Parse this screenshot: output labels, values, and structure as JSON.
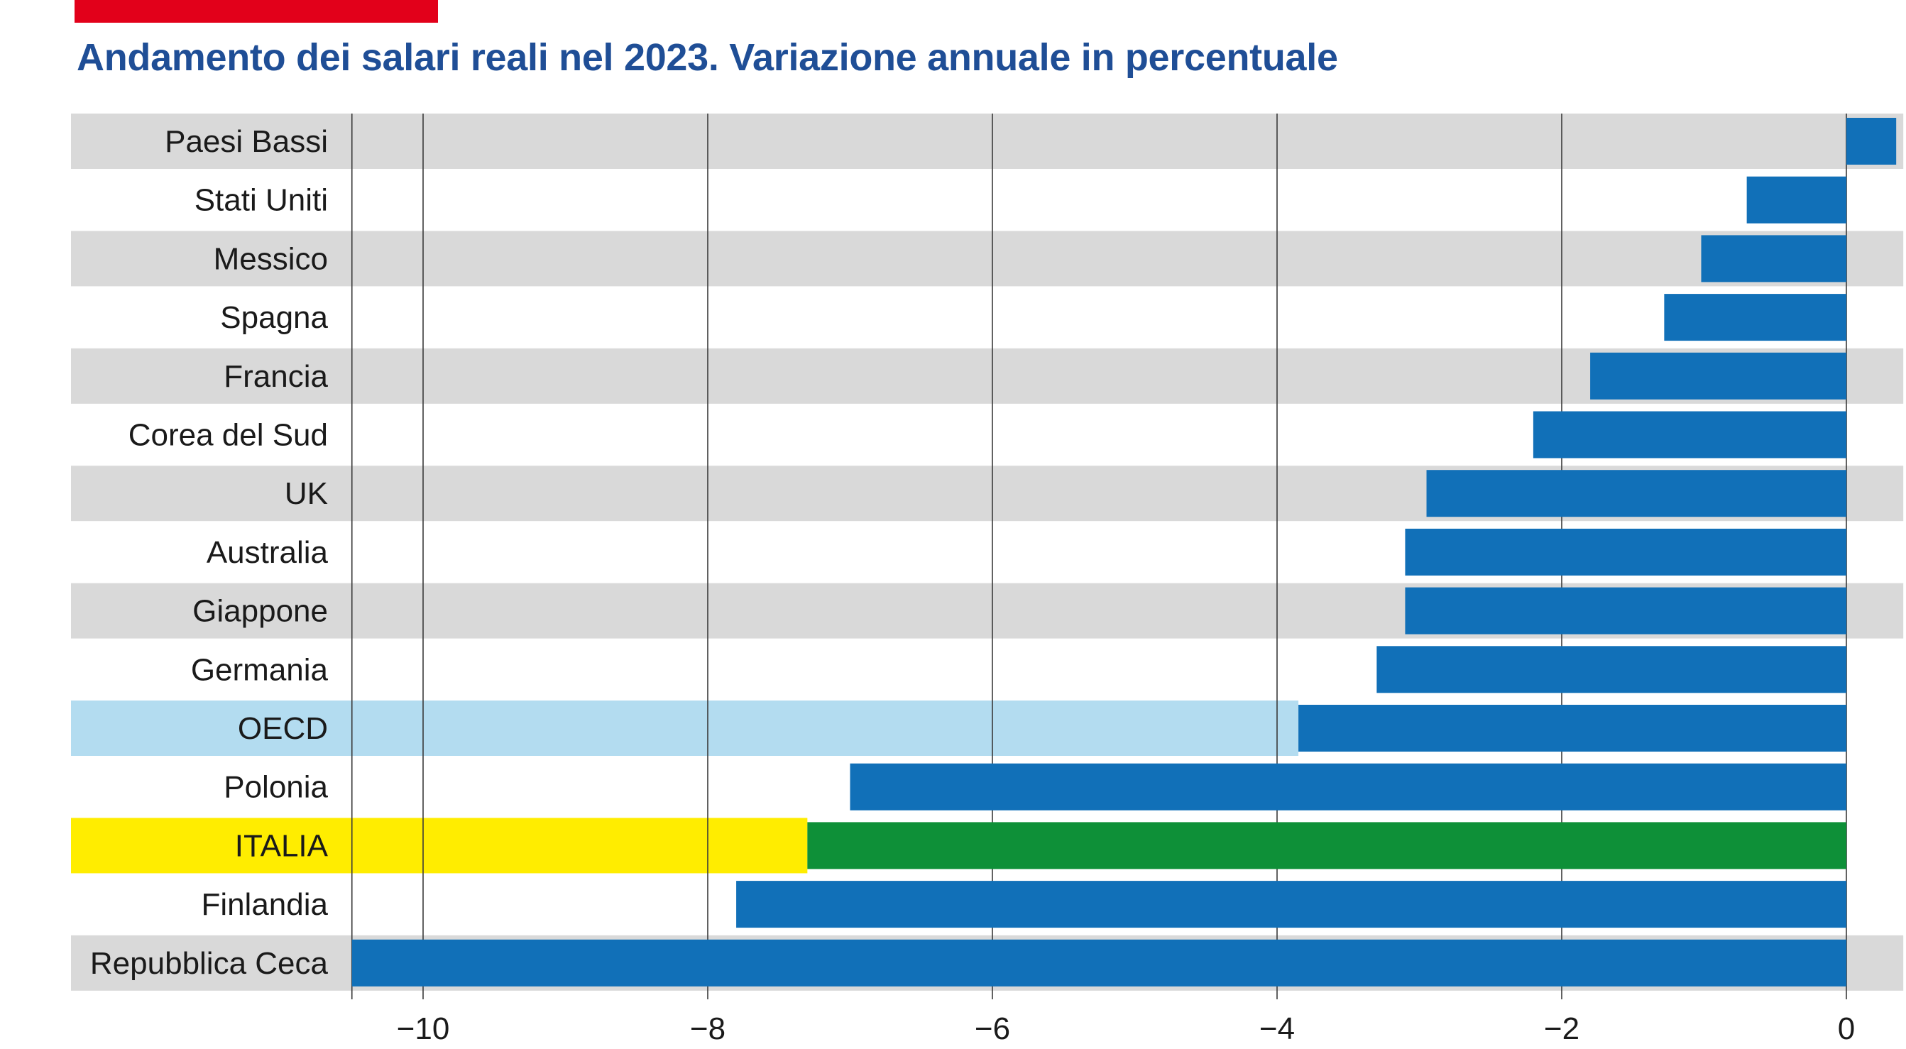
{
  "colors": {
    "accent_bar": "#e2001a",
    "title": "#1f4e96",
    "bar": "#1170b8",
    "italia_bar": "#0e9038",
    "row_stripe": "#d9d9d9",
    "oecd_row": "#b3dcf0",
    "italia_row": "#ffed00",
    "gridline": "#3a3a3a"
  },
  "chart_data": {
    "type": "bar",
    "orientation": "horizontal",
    "title": "Andamento dei salari reali nel 2023. Variazione annuale in percentuale",
    "xlabel": "",
    "ylabel": "",
    "xlim": [
      -10.5,
      0.35
    ],
    "xticks": [
      -10,
      -8,
      -6,
      -4,
      -2,
      0
    ],
    "xtick_labels": [
      "−10",
      "−8",
      "−6",
      "−4",
      "−2",
      "0"
    ],
    "grid": true,
    "categories": [
      "Paesi Bassi",
      "Stati Uniti",
      "Messico",
      "Spagna",
      "Francia",
      "Corea del Sud",
      "UK",
      "Australia",
      "Giappone",
      "Germania",
      "OECD",
      "Polonia",
      "ITALIA",
      "Finlandia",
      "Repubblica Ceca"
    ],
    "values": [
      0.35,
      -0.7,
      -1.02,
      -1.28,
      -1.8,
      -2.2,
      -2.95,
      -3.1,
      -3.1,
      -3.3,
      -3.85,
      -7.0,
      -7.3,
      -7.8,
      -10.5
    ],
    "highlights": {
      "OECD": "oecd",
      "ITALIA": "italia"
    }
  }
}
